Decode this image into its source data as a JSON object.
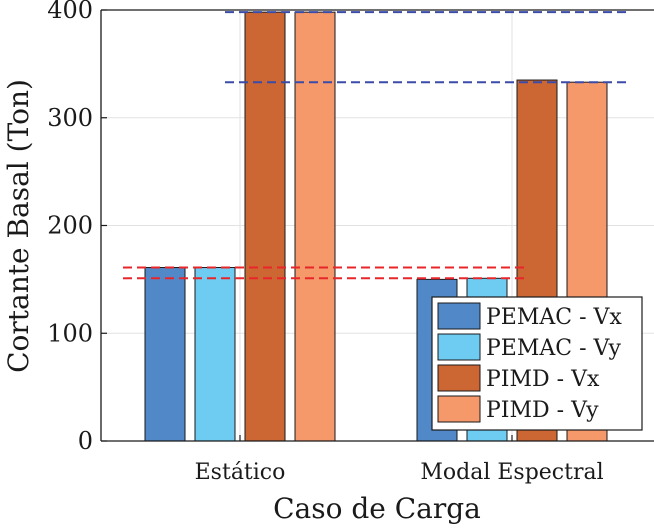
{
  "chart_data": {
    "type": "bar",
    "title": "",
    "xlabel": "Caso de Carga",
    "ylabel": "Cortante Basal (Ton)",
    "ylim": [
      0,
      400
    ],
    "yticks": [
      0,
      100,
      200,
      300,
      400
    ],
    "categories": [
      "Estático",
      "Modal Espectral"
    ],
    "series": [
      {
        "name": "PEMAC - Vx",
        "values": [
          161,
          150
        ],
        "color": "#5088C8"
      },
      {
        "name": "PEMAC - Vy",
        "values": [
          161,
          151
        ],
        "color": "#6ECBF2"
      },
      {
        "name": "PIMD - Vx",
        "values": [
          398,
          335
        ],
        "color": "#CC6633"
      },
      {
        "name": "PIMD - Vy",
        "values": [
          398,
          333
        ],
        "color": "#F5986A"
      }
    ],
    "reference_lines": [
      {
        "y": 398,
        "color": "#3A4BA8",
        "style": "dashed"
      },
      {
        "y": 333,
        "color": "#3A4BA8",
        "style": "dashed"
      },
      {
        "y": 161,
        "color": "#E8262A",
        "style": "dashed"
      },
      {
        "y": 151,
        "color": "#E8262A",
        "style": "dashed"
      }
    ],
    "grid": true,
    "legend_position": "bottom-right"
  }
}
